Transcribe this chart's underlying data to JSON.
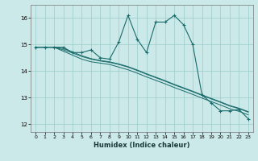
{
  "xlabel": "Humidex (Indice chaleur)",
  "ylabel": "",
  "xlim": [
    -0.5,
    23.5
  ],
  "ylim": [
    11.7,
    16.5
  ],
  "yticks": [
    12,
    13,
    14,
    15,
    16
  ],
  "xticks": [
    0,
    1,
    2,
    3,
    4,
    5,
    6,
    7,
    8,
    9,
    10,
    11,
    12,
    13,
    14,
    15,
    16,
    17,
    18,
    19,
    20,
    21,
    22,
    23
  ],
  "bg_color": "#cce9e9",
  "grid_color": "#99cccc",
  "line_color": "#1a6b6b",
  "line1_x": [
    0,
    1,
    2,
    3,
    4,
    5,
    6,
    7,
    8,
    9,
    10,
    11,
    12,
    13,
    14,
    15,
    16,
    17,
    18,
    19,
    20,
    21,
    22,
    23
  ],
  "line1_y": [
    14.9,
    14.9,
    14.9,
    14.9,
    14.7,
    14.7,
    14.8,
    14.5,
    14.45,
    15.1,
    16.1,
    15.2,
    14.7,
    15.85,
    15.85,
    16.1,
    15.75,
    15.0,
    13.1,
    12.8,
    12.5,
    12.5,
    12.55,
    12.2
  ],
  "line2_x": [
    0,
    1,
    2,
    3,
    4,
    5,
    6,
    7,
    8,
    9,
    10,
    11,
    12,
    13,
    14,
    15,
    16,
    17,
    18,
    19,
    20,
    21,
    22,
    23
  ],
  "line2_y": [
    14.9,
    14.9,
    14.9,
    14.75,
    14.6,
    14.45,
    14.35,
    14.3,
    14.25,
    14.15,
    14.05,
    13.92,
    13.78,
    13.65,
    13.52,
    13.38,
    13.25,
    13.12,
    12.98,
    12.85,
    12.72,
    12.58,
    12.48,
    12.35
  ],
  "line3_x": [
    0,
    1,
    2,
    3,
    4,
    5,
    6,
    7,
    8,
    9,
    10,
    11,
    12,
    13,
    14,
    15,
    16,
    17,
    18,
    19,
    20,
    21,
    22,
    23
  ],
  "line3_y": [
    14.9,
    14.9,
    14.9,
    14.8,
    14.68,
    14.55,
    14.45,
    14.38,
    14.33,
    14.25,
    14.15,
    14.02,
    13.88,
    13.75,
    13.62,
    13.48,
    13.35,
    13.22,
    13.08,
    12.95,
    12.82,
    12.68,
    12.58,
    12.45
  ],
  "line4_x": [
    0,
    1,
    2,
    3,
    4,
    5,
    6,
    7,
    8,
    9,
    10,
    11,
    12,
    13,
    14,
    15,
    16,
    17,
    18,
    19,
    20,
    21,
    22,
    23
  ],
  "line4_y": [
    14.9,
    14.9,
    14.9,
    14.85,
    14.72,
    14.58,
    14.47,
    14.4,
    14.35,
    14.27,
    14.17,
    14.04,
    13.9,
    13.77,
    13.64,
    13.5,
    13.37,
    13.24,
    13.1,
    12.97,
    12.84,
    12.7,
    12.6,
    12.47
  ]
}
